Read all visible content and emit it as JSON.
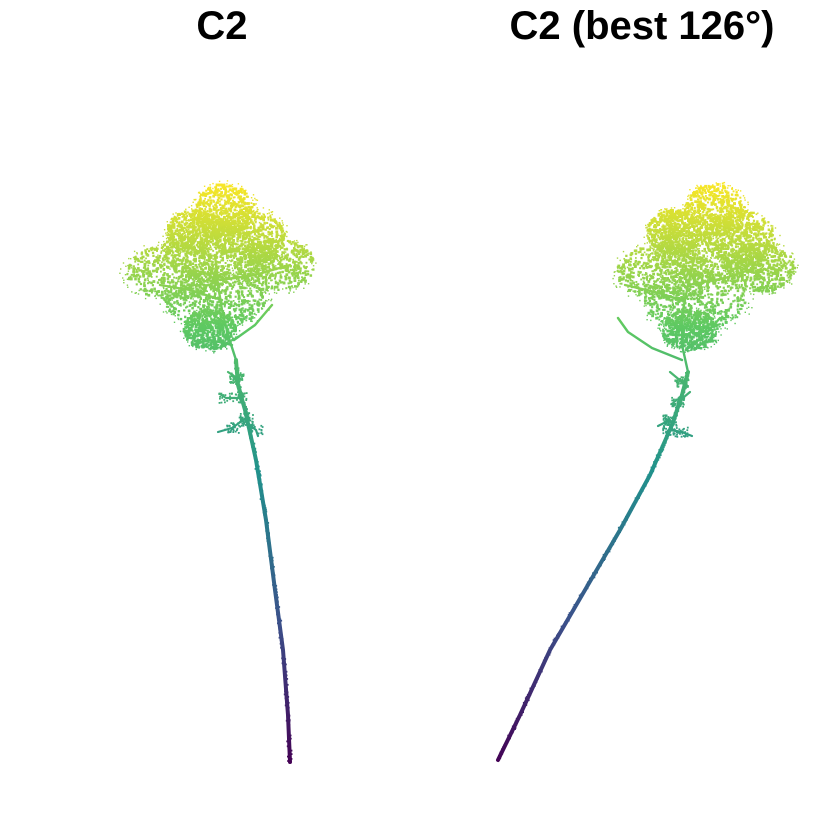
{
  "figure": {
    "panels": [
      {
        "title": "C2"
      },
      {
        "title": "C2 (best 126°)"
      }
    ],
    "colormap": {
      "name": "viridis",
      "stops": [
        "#440154",
        "#3b528b",
        "#21918c",
        "#5ec962",
        "#fde725"
      ]
    }
  }
}
